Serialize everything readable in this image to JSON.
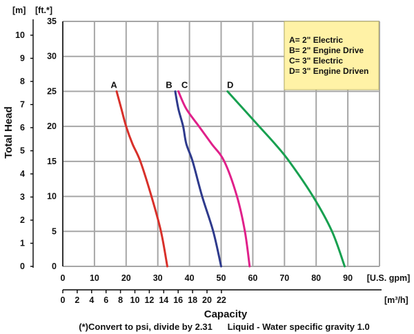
{
  "chart_data": {
    "type": "line",
    "title": "",
    "xlabel": "Capacity",
    "x_unit": "[U.S. gpm]",
    "x2_unit": "[m³/h]",
    "ylabel": "Total Head",
    "y_unit": "[ft.*]",
    "y2_unit": "[m]",
    "xlim": [
      0,
      100
    ],
    "ylim": [
      0,
      35
    ],
    "x_ticks": [
      "0",
      "10",
      "20",
      "30",
      "40",
      "50",
      "60",
      "70",
      "80",
      "90",
      "[U.S. gpm]"
    ],
    "x2_ticks": [
      "0",
      "2",
      "4",
      "6",
      "8",
      "10",
      "12",
      "14",
      "16",
      "18",
      "20",
      "22"
    ],
    "y_ticks": [
      "0",
      "5",
      "10",
      "15",
      "20",
      "25",
      "30",
      "35"
    ],
    "y2_ticks": [
      "0",
      "1",
      "2",
      "3",
      "4",
      "5",
      "6",
      "7",
      "8",
      "9",
      "10"
    ],
    "grid": true,
    "legend": {
      "placement": "top-right",
      "entries": [
        "A= 2\" Electric",
        "B= 2\" Engine Drive",
        "C= 3\" Electric",
        "D= 3\" Engine Driven"
      ]
    },
    "series": [
      {
        "name": "A",
        "color": "#d8302a",
        "x": [
          17.0,
          18.5,
          20.0,
          22.0,
          24.5,
          28.0,
          31.0,
          33.0
        ],
        "y": [
          25,
          22.5,
          20,
          17.5,
          15,
          10,
          5,
          0
        ]
      },
      {
        "name": "B",
        "color": "#2e3a8c",
        "x": [
          35.5,
          36.5,
          38.0,
          39.0,
          41.0,
          44.0,
          47.5,
          50.0
        ],
        "y": [
          25,
          22.5,
          20,
          17.5,
          15,
          10,
          5,
          0
        ]
      },
      {
        "name": "C",
        "color": "#e0208a",
        "x": [
          36.5,
          39.0,
          43.0,
          47.0,
          51.0,
          55.0,
          57.5,
          59.0
        ],
        "y": [
          25,
          22.5,
          20,
          17.5,
          15,
          10,
          5,
          0
        ]
      },
      {
        "name": "D",
        "color": "#18a050",
        "x": [
          52.0,
          57.0,
          62.0,
          67.0,
          71.5,
          79.0,
          85.0,
          89.0
        ],
        "y": [
          25,
          22.5,
          20,
          17.5,
          15,
          10,
          5,
          0
        ]
      }
    ],
    "footnote": "(*)Convert to psi, divide by 2.31      Liquid - Water specific gravity 1.0"
  }
}
